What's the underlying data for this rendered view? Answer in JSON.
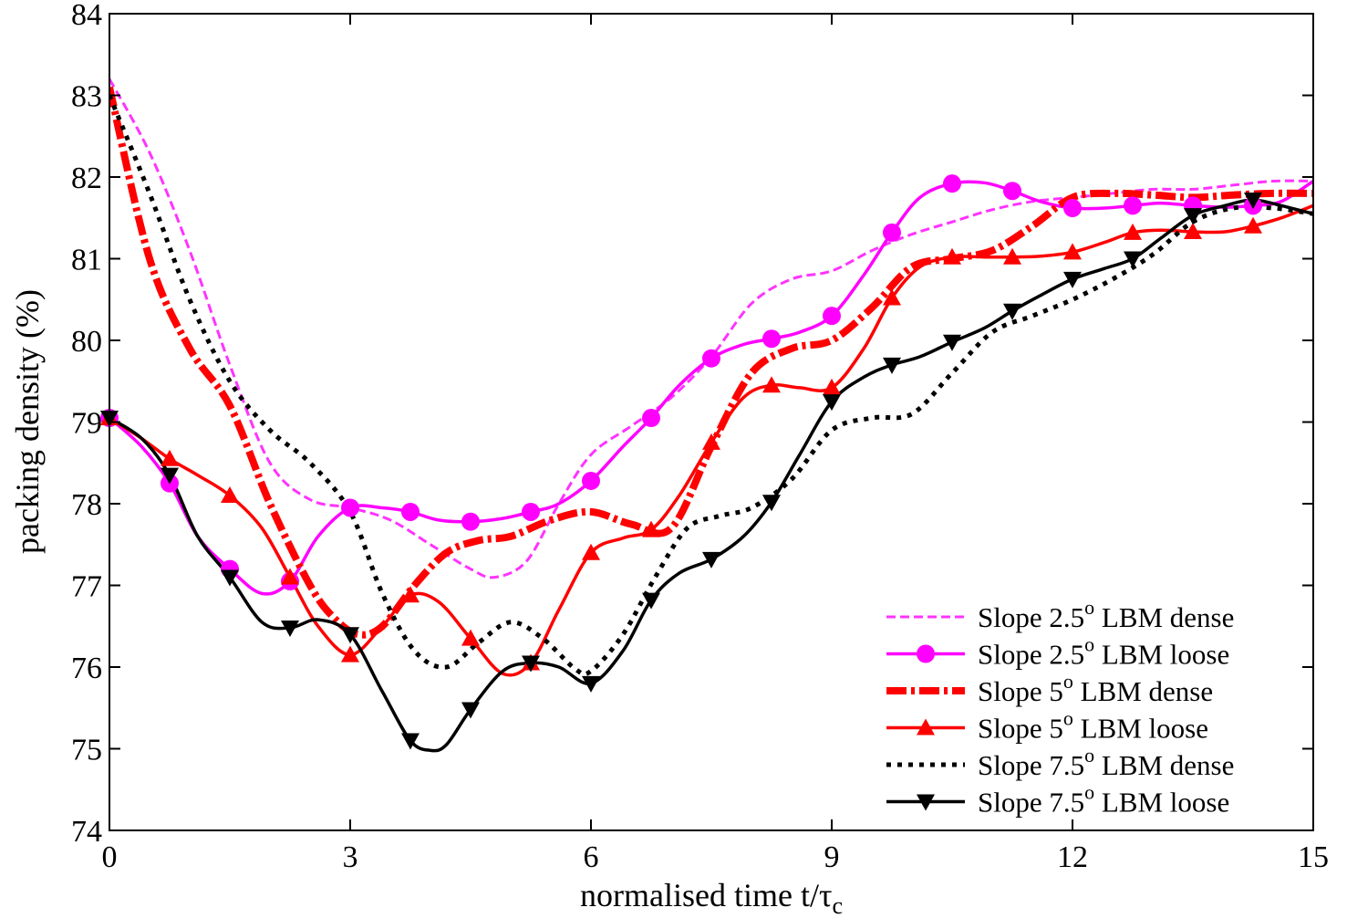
{
  "chart_data": {
    "type": "line",
    "xlabel": "normalised time t/τ",
    "xlabel_sub": "c",
    "ylabel": "packing density (%)",
    "xlim": [
      0,
      15
    ],
    "ylim": [
      74,
      84
    ],
    "xticks": [
      0,
      3,
      6,
      9,
      12,
      15
    ],
    "yticks": [
      74,
      75,
      76,
      77,
      78,
      79,
      80,
      81,
      82,
      83,
      84
    ],
    "grid": false,
    "legend_position": "bottom-right",
    "series": [
      {
        "name": "Slope 2.5",
        "name_sup": "o",
        "name_suffix": " LBM dense",
        "color": "#ff33ff",
        "style": "dashed-fine",
        "marker": "none",
        "x": [
          0,
          0.5,
          1.0,
          1.5,
          2.0,
          2.5,
          3.0,
          3.5,
          4.0,
          4.5,
          4.8,
          5.2,
          5.6,
          6.0,
          6.5,
          7.0,
          7.5,
          8.0,
          8.5,
          9.0,
          9.5,
          10.0,
          10.5,
          11.0,
          11.5,
          12.0,
          12.5,
          13.0,
          13.5,
          14.0,
          14.5,
          15.0
        ],
        "y": [
          83.2,
          82.3,
          81.1,
          79.7,
          78.5,
          78.05,
          77.95,
          77.8,
          77.5,
          77.2,
          77.1,
          77.3,
          78.0,
          78.6,
          78.95,
          79.3,
          79.8,
          80.45,
          80.75,
          80.85,
          81.1,
          81.3,
          81.45,
          81.6,
          81.7,
          81.75,
          81.8,
          81.85,
          81.85,
          81.9,
          81.95,
          81.95
        ]
      },
      {
        "name": "Slope 2.5",
        "name_sup": "o",
        "name_suffix": " LBM loose",
        "color": "#ff00ff",
        "style": "solid",
        "marker": "circle",
        "x": [
          0,
          0.4,
          0.75,
          1.1,
          1.5,
          1.9,
          2.25,
          2.6,
          3.0,
          3.4,
          3.75,
          4.1,
          4.5,
          4.9,
          5.25,
          5.6,
          6.0,
          6.4,
          6.75,
          7.1,
          7.5,
          7.9,
          8.25,
          8.6,
          9.0,
          9.4,
          9.75,
          10.1,
          10.5,
          10.9,
          11.25,
          11.6,
          12.0,
          12.4,
          12.75,
          13.1,
          13.5,
          13.9,
          14.25,
          14.6,
          15.0
        ],
        "y": [
          79.05,
          78.7,
          78.25,
          77.6,
          77.2,
          76.9,
          77.05,
          77.6,
          77.95,
          77.95,
          77.9,
          77.8,
          77.78,
          77.82,
          77.9,
          78.0,
          78.28,
          78.7,
          79.05,
          79.45,
          79.78,
          79.95,
          80.02,
          80.1,
          80.3,
          80.8,
          81.32,
          81.75,
          81.92,
          81.93,
          81.83,
          81.7,
          81.62,
          81.62,
          81.65,
          81.68,
          81.65,
          81.63,
          81.65,
          81.7,
          81.95
        ],
        "marker_x": [
          0,
          0.75,
          1.5,
          2.25,
          3.0,
          3.75,
          4.5,
          5.25,
          6.0,
          6.75,
          7.5,
          8.25,
          9.0,
          9.75,
          10.5,
          11.25,
          12.0,
          12.75,
          13.5,
          14.25
        ]
      },
      {
        "name": "Slope 5",
        "name_sup": "o",
        "name_suffix": " LBM dense",
        "color": "#ff0000",
        "style": "dash-dot-thick",
        "marker": "none",
        "x": [
          0,
          0.5,
          1.0,
          1.5,
          2.0,
          2.5,
          2.8,
          3.1,
          3.4,
          3.8,
          4.2,
          4.6,
          5.0,
          5.5,
          6.0,
          6.5,
          7.0,
          7.5,
          8.0,
          8.5,
          9.0,
          9.5,
          10.0,
          10.5,
          11.0,
          11.5,
          12.0,
          12.5,
          13.0,
          13.5,
          14.0,
          14.5,
          15.0
        ],
        "y": [
          83.1,
          81.0,
          79.9,
          79.2,
          78.0,
          77.0,
          76.6,
          76.4,
          76.5,
          77.0,
          77.4,
          77.55,
          77.6,
          77.8,
          77.9,
          77.75,
          77.7,
          78.7,
          79.6,
          79.9,
          80.0,
          80.4,
          80.9,
          81.0,
          81.1,
          81.4,
          81.75,
          81.8,
          81.78,
          81.75,
          81.78,
          81.8,
          81.8
        ]
      },
      {
        "name": "Slope 5",
        "name_sup": "o",
        "name_suffix": " LBM loose",
        "color": "#ff0000",
        "style": "solid",
        "marker": "triangle-up",
        "x": [
          0,
          0.4,
          0.75,
          1.1,
          1.5,
          1.9,
          2.25,
          2.6,
          3.0,
          3.4,
          3.75,
          4.1,
          4.5,
          4.9,
          5.25,
          5.6,
          6.0,
          6.4,
          6.75,
          7.1,
          7.5,
          7.9,
          8.25,
          8.6,
          9.0,
          9.4,
          9.75,
          10.1,
          10.5,
          10.9,
          11.25,
          11.6,
          12.0,
          12.4,
          12.75,
          13.1,
          13.5,
          13.9,
          14.25,
          14.6,
          15.0
        ],
        "y": [
          79.05,
          78.8,
          78.55,
          78.35,
          78.1,
          77.7,
          77.1,
          76.5,
          76.15,
          76.5,
          76.88,
          76.8,
          76.35,
          75.92,
          76.05,
          76.7,
          77.4,
          77.58,
          77.68,
          78.1,
          78.75,
          79.3,
          79.45,
          79.42,
          79.42,
          79.9,
          80.52,
          80.9,
          81.02,
          81.02,
          81.02,
          81.03,
          81.08,
          81.2,
          81.32,
          81.35,
          81.33,
          81.33,
          81.4,
          81.5,
          81.65
        ],
        "marker_x": [
          0,
          0.75,
          1.5,
          2.25,
          3.0,
          3.75,
          4.5,
          5.25,
          6.0,
          6.75,
          7.5,
          8.25,
          9.0,
          9.75,
          10.5,
          11.25,
          12.0,
          12.75,
          13.5,
          14.25
        ]
      },
      {
        "name": "Slope 7.5",
        "name_sup": "o",
        "name_suffix": " LBM dense",
        "color": "#000000",
        "style": "dotted-thick",
        "marker": "none",
        "x": [
          0,
          0.5,
          1.0,
          1.5,
          2.0,
          2.5,
          3.0,
          3.4,
          3.8,
          4.2,
          4.6,
          5.0,
          5.4,
          5.8,
          6.0,
          6.4,
          6.8,
          7.2,
          7.6,
          8.0,
          8.5,
          9.0,
          9.5,
          10.0,
          10.5,
          11.0,
          11.5,
          12.0,
          12.5,
          13.0,
          13.5,
          14.0,
          14.5,
          15.0
        ],
        "y": [
          83.0,
          81.8,
          80.5,
          79.5,
          78.9,
          78.5,
          77.9,
          76.9,
          76.2,
          76.0,
          76.3,
          76.55,
          76.35,
          75.98,
          75.95,
          76.4,
          77.1,
          77.7,
          77.85,
          77.95,
          78.3,
          78.9,
          79.05,
          79.1,
          79.6,
          80.1,
          80.3,
          80.5,
          80.75,
          81.05,
          81.45,
          81.62,
          81.62,
          81.55
        ]
      },
      {
        "name": "Slope 7.5",
        "name_sup": "o",
        "name_suffix": " LBM loose",
        "color": "#000000",
        "style": "solid",
        "marker": "triangle-down",
        "x": [
          0,
          0.4,
          0.75,
          1.1,
          1.5,
          1.9,
          2.25,
          2.6,
          3.0,
          3.4,
          3.75,
          4.0,
          4.2,
          4.5,
          4.9,
          5.25,
          5.6,
          6.0,
          6.4,
          6.75,
          7.1,
          7.5,
          7.9,
          8.25,
          8.6,
          9.0,
          9.4,
          9.75,
          10.1,
          10.5,
          10.9,
          11.25,
          11.6,
          12.0,
          12.4,
          12.75,
          13.1,
          13.5,
          13.9,
          14.25,
          14.6,
          15.0
        ],
        "y": [
          79.05,
          78.8,
          78.35,
          77.6,
          77.1,
          76.55,
          76.48,
          76.58,
          76.4,
          75.7,
          75.1,
          74.98,
          75.05,
          75.48,
          75.95,
          76.05,
          76.0,
          75.8,
          76.2,
          76.82,
          77.15,
          77.32,
          77.6,
          78.02,
          78.6,
          79.25,
          79.55,
          79.7,
          79.8,
          79.98,
          80.15,
          80.36,
          80.55,
          80.75,
          80.88,
          81.0,
          81.25,
          81.53,
          81.65,
          81.72,
          81.65,
          81.55
        ],
        "marker_x": [
          0,
          0.75,
          1.5,
          2.25,
          3.0,
          3.75,
          4.5,
          5.25,
          6.0,
          6.75,
          7.5,
          8.25,
          9.0,
          9.75,
          10.5,
          11.25,
          12.0,
          12.75,
          13.5,
          14.25
        ]
      }
    ]
  }
}
